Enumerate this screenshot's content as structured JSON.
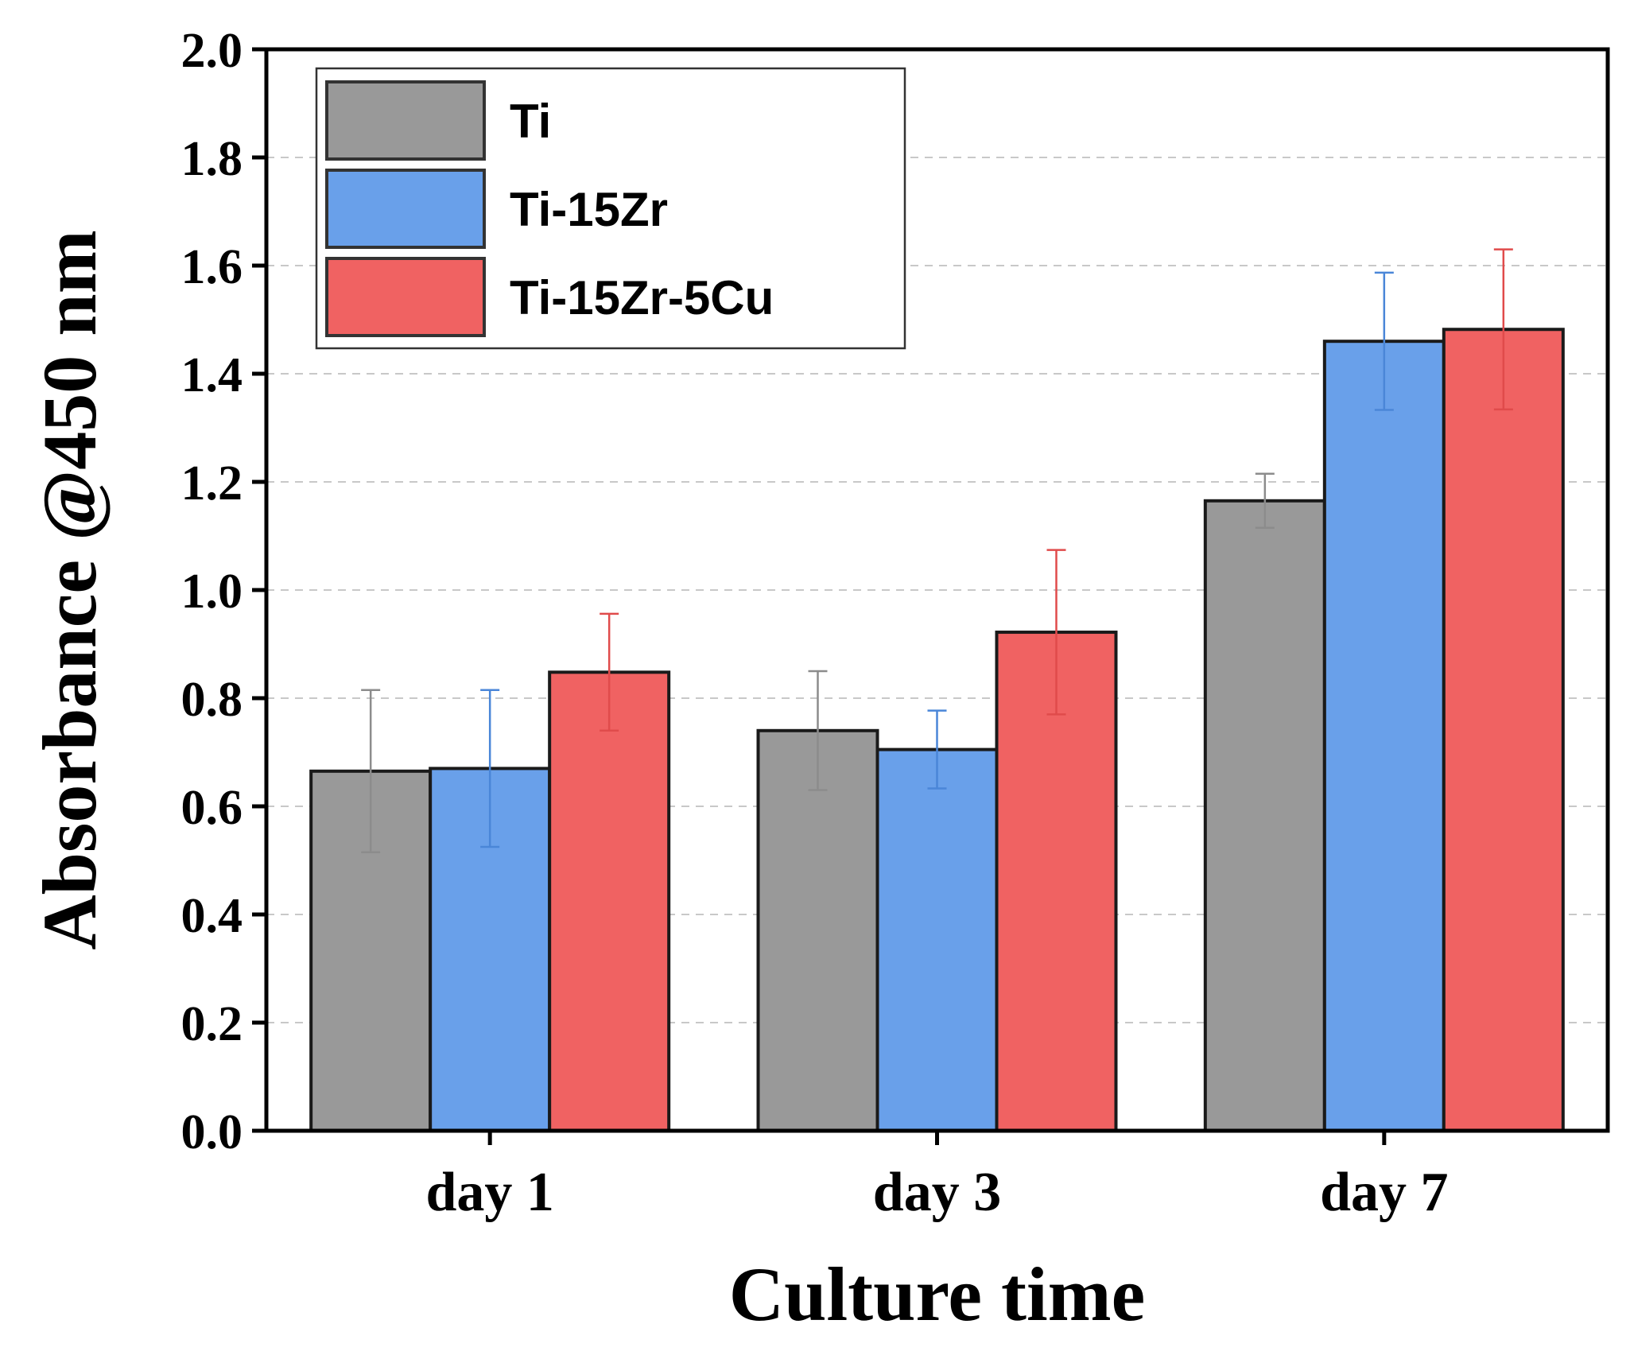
{
  "chart_data": {
    "type": "bar",
    "categories": [
      "day 1",
      "day 3",
      "day 7"
    ],
    "series": [
      {
        "name": "Ti",
        "values": [
          0.665,
          0.74,
          1.165
        ],
        "errors": [
          0.15,
          0.11,
          0.05
        ],
        "color": "#999999",
        "error_color": "#8c8c8c"
      },
      {
        "name": "Ti-15Zr",
        "values": [
          0.67,
          0.705,
          1.46
        ],
        "errors": [
          0.145,
          0.072,
          0.127
        ],
        "color": "#69a0ea",
        "error_color": "#4a86d8"
      },
      {
        "name": "Ti-15Zr-5Cu",
        "values": [
          0.848,
          0.922,
          1.482
        ],
        "errors": [
          0.108,
          0.152,
          0.148
        ],
        "color": "#f06262",
        "error_color": "#e04b4b"
      }
    ],
    "xlabel": "Culture time",
    "ylabel": "Absorbance @450 nm",
    "ylim": [
      0,
      2.0
    ],
    "yticks": [
      "0.0",
      "0.2",
      "0.4",
      "0.6",
      "0.8",
      "1.0",
      "1.2",
      "1.4",
      "1.6",
      "1.8",
      "2.0"
    ],
    "grid": "horizontal dashed",
    "legend_position": "top-left"
  }
}
